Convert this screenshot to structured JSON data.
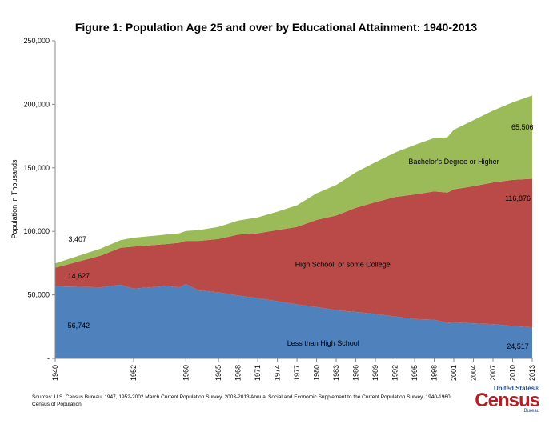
{
  "chart_data": {
    "type": "area",
    "stacked": true,
    "title": "Figure 1: Population Age 25 and over by Educational Attainment: 1940-2013",
    "ylabel": "Population in Thousands",
    "xlabel": "",
    "ylim": [
      0,
      250000
    ],
    "yticks": [
      0,
      50000,
      100000,
      150000,
      200000,
      250000
    ],
    "ytick_labels": [
      "-",
      "50,000",
      "100,000",
      "150,000",
      "200,000",
      "250,000"
    ],
    "xticks": [
      1940,
      1952,
      1960,
      1965,
      1968,
      1971,
      1974,
      1977,
      1980,
      1983,
      1986,
      1989,
      1992,
      1995,
      1998,
      2001,
      2004,
      2007,
      2010,
      2013
    ],
    "x": [
      1940,
      1947,
      1950,
      1952,
      1957,
      1959,
      1960,
      1962,
      1965,
      1968,
      1971,
      1974,
      1977,
      1980,
      1983,
      1986,
      1989,
      1992,
      1995,
      1998,
      2000,
      2001,
      2004,
      2007,
      2010,
      2013
    ],
    "series": [
      {
        "name": "Less than High School",
        "color": "#4f81bd",
        "values": [
          56742,
          56000,
          58000,
          55000,
          57000,
          56000,
          58500,
          53500,
          52000,
          49500,
          47500,
          45000,
          42500,
          40500,
          38000,
          36500,
          35000,
          33000,
          31000,
          30500,
          28000,
          28500,
          27500,
          27000,
          25500,
          24517
        ]
      },
      {
        "name": "High School, or some College",
        "color": "#b94a48",
        "values": [
          14627,
          25000,
          29000,
          33000,
          33000,
          35000,
          34000,
          39000,
          42000,
          48000,
          51000,
          56000,
          61000,
          68500,
          74500,
          82000,
          88000,
          94000,
          98000,
          101000,
          102500,
          104500,
          108000,
          111500,
          115000,
          116876
        ]
      },
      {
        "name": "Bachelor's Degree or Higher",
        "color": "#9bbb59",
        "values": [
          3407,
          5500,
          6000,
          7000,
          7500,
          7500,
          7800,
          8500,
          9500,
          11000,
          12500,
          14500,
          17000,
          21000,
          24000,
          28000,
          31500,
          35000,
          39000,
          42000,
          43500,
          47000,
          52000,
          56500,
          61000,
          65506
        ]
      }
    ],
    "annotations": [
      {
        "text": "3,407",
        "series": "Bachelor's Degree or Higher",
        "x": 1940
      },
      {
        "text": "14,627",
        "series": "High School, or some College",
        "x": 1940
      },
      {
        "text": "56,742",
        "series": "Less than High School",
        "x": 1940
      },
      {
        "text": "65,506",
        "series": "Bachelor's Degree or Higher",
        "x": 2013
      },
      {
        "text": "116,876",
        "series": "High School, or some College",
        "x": 2013
      },
      {
        "text": "24,517",
        "series": "Less than High School",
        "x": 2013
      }
    ],
    "legend": "inline labels"
  },
  "footer": {
    "sources": "Sources: U.S. Census Bureau. 1947, 1952-2002 March Current Population Survey, 2003-2013 Annual Social and Economic Supplement to the Current Population Survey, 1940-1960 Census of Population."
  },
  "logo": {
    "top": "United States®",
    "main": "Census",
    "sub": "Bureau"
  }
}
